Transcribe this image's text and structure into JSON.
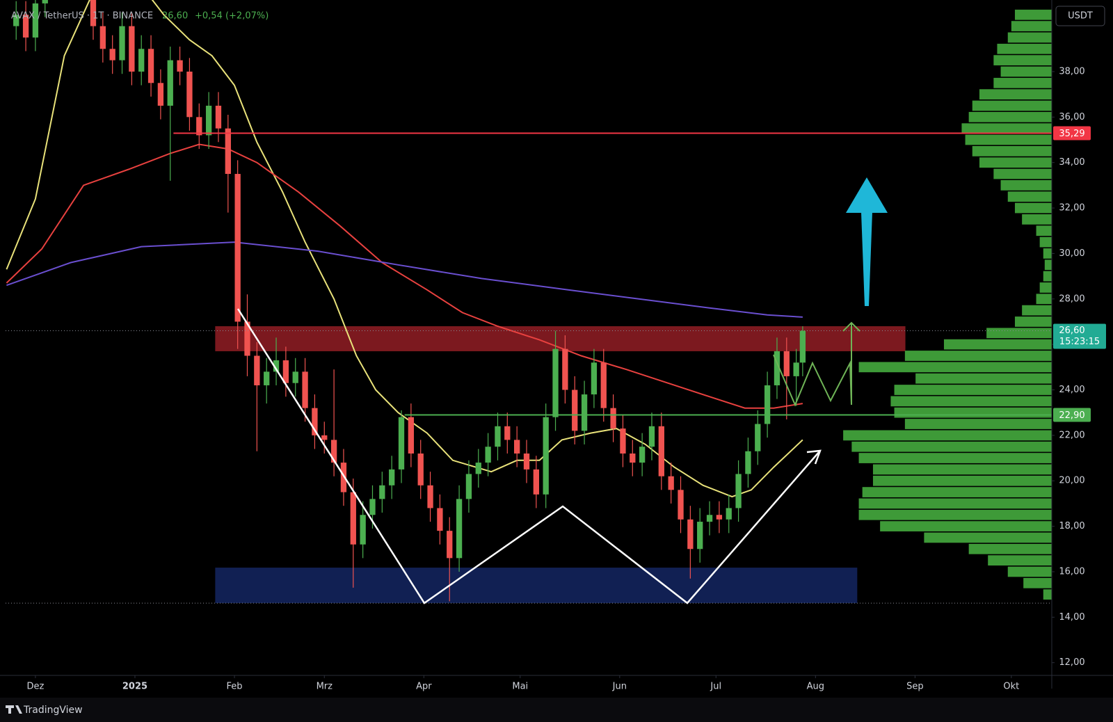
{
  "chart_data": {
    "type": "candlestick",
    "symbol": "AVAX / TetherUS · 1T · BINANCE",
    "change": "+0,54 (+2,07%)",
    "currency": "USDT",
    "brand": "TradingView",
    "up_color": "#4caf50",
    "down_color": "#f05350",
    "x": [
      -6,
      -3,
      0,
      3,
      6,
      9,
      12,
      15,
      18,
      21,
      24,
      27,
      30,
      33,
      36,
      39,
      42,
      45,
      48,
      51,
      54,
      57,
      60,
      63,
      66,
      69,
      72,
      75,
      78,
      81,
      84,
      87,
      90,
      93,
      96,
      99,
      102,
      105,
      108,
      111,
      114,
      117,
      120,
      123,
      126,
      129,
      132,
      135,
      138,
      141,
      144,
      147,
      150,
      153,
      156,
      159,
      162,
      165,
      168,
      171,
      174,
      177,
      180,
      183,
      186,
      189,
      192,
      195,
      198,
      201,
      204,
      207,
      210,
      213,
      216,
      219,
      222,
      225,
      228,
      231,
      234,
      237,
      239
    ],
    "open": [
      40,
      40.5,
      39.5,
      41,
      42,
      44,
      45,
      43,
      42,
      40,
      39,
      38.5,
      40,
      38,
      39,
      37.5,
      36.5,
      38.5,
      38,
      36,
      35.2,
      36.5,
      35.5,
      33.5,
      27,
      25.5,
      24.2,
      24.8,
      25.3,
      24.3,
      24.8,
      23.2,
      22,
      21.8,
      20.8,
      19.5,
      17.2,
      18.5,
      19.2,
      19.8,
      20.5,
      22.8,
      21.2,
      19.8,
      18.8,
      17.8,
      16.6,
      19.2,
      20.3,
      20.8,
      21.5,
      22.4,
      21.8,
      21.2,
      20.5,
      19.4,
      22.8,
      25.8,
      24,
      22.2,
      23.8,
      25.2,
      23.2,
      22.3,
      21.2,
      20.8,
      21.5,
      22.4,
      20.2,
      19.6,
      18.3,
      17,
      18.2,
      18.5,
      18.3,
      18.8,
      20.3,
      21.3,
      22.5,
      24.2,
      25.7,
      24.6,
      25.2
    ],
    "high": [
      41.1,
      41.1,
      41.6,
      42.6,
      44.6,
      45.6,
      45.6,
      43.6,
      42.6,
      40.6,
      39.6,
      40.6,
      40.6,
      39.6,
      39.6,
      38.1,
      39.1,
      39.1,
      38.6,
      36.6,
      37.1,
      37.1,
      36.1,
      34.1,
      28.2,
      26.1,
      25.4,
      26.3,
      25.9,
      25.4,
      25.4,
      23.8,
      22.6,
      24.9,
      21.4,
      20.1,
      19.1,
      19.8,
      20.4,
      21.1,
      23.1,
      23.4,
      21.8,
      20.4,
      19.4,
      18.4,
      19.8,
      20.9,
      21.4,
      22.1,
      23,
      23,
      22.4,
      21.8,
      21.1,
      23.4,
      26.6,
      26.4,
      24.6,
      24.4,
      25.8,
      25.8,
      23.8,
      22.9,
      21.8,
      22.1,
      23,
      23,
      20.8,
      20.2,
      18.9,
      18.8,
      19.1,
      19.1,
      19.4,
      20.9,
      21.9,
      23.1,
      24.8,
      26.3,
      26.3,
      25.8,
      26.8
    ],
    "low": [
      39.4,
      38.9,
      38.9,
      40.4,
      41.4,
      43.4,
      42.4,
      41.4,
      39.4,
      38.4,
      37.9,
      37.9,
      37.4,
      37.4,
      36.9,
      35.9,
      33.2,
      37.4,
      35.4,
      34.6,
      34.6,
      34.9,
      31.8,
      25.8,
      24.6,
      21.3,
      23.4,
      24.2,
      23.7,
      23.7,
      22.6,
      21.4,
      21.2,
      20.2,
      18.9,
      15.3,
      16.6,
      17.9,
      18.6,
      19.2,
      19.9,
      20.6,
      19.2,
      18.2,
      17.2,
      14.7,
      16,
      18.6,
      19.7,
      20.2,
      20.9,
      21.2,
      20.6,
      19.9,
      18.8,
      18.8,
      22.2,
      23.4,
      21.6,
      21.6,
      23.2,
      22.6,
      21.7,
      20.6,
      20.2,
      20.2,
      20.9,
      19.6,
      19,
      17.7,
      15.7,
      16.4,
      17.6,
      17.7,
      17.7,
      18.2,
      19.7,
      20.7,
      21.9,
      23.6,
      22.7,
      23.3,
      24.6
    ],
    "close": [
      40.5,
      39.5,
      41,
      42,
      44,
      45,
      43,
      42,
      40,
      39,
      38.5,
      40,
      38,
      39,
      37.5,
      36.5,
      38.5,
      38,
      36,
      35.2,
      36.5,
      35.5,
      33.5,
      27,
      25.5,
      24.2,
      24.8,
      25.3,
      24.3,
      24.8,
      23.2,
      22,
      21.8,
      20.8,
      19.5,
      17.2,
      18.5,
      19.2,
      19.8,
      20.5,
      22.8,
      21.2,
      19.8,
      18.8,
      17.8,
      16.6,
      19.2,
      20.3,
      20.8,
      21.5,
      22.4,
      21.8,
      21.2,
      20.5,
      19.4,
      22.8,
      25.8,
      24,
      22.2,
      23.8,
      25.2,
      23.2,
      22.3,
      21.2,
      20.8,
      21.5,
      22.4,
      20.2,
      19.6,
      18.3,
      17,
      18.2,
      18.5,
      18.3,
      18.8,
      20.3,
      21.3,
      22.5,
      24.2,
      25.7,
      24.6,
      25.2,
      26.6
    ],
    "series": [
      {
        "color": "#e9e27a",
        "x": [
          -9,
          0,
          9,
          18,
          29,
          40,
          48,
          55,
          62,
          69,
          77,
          84,
          93,
          100,
          106,
          113,
          122,
          130,
          142,
          150,
          157,
          164,
          173,
          181,
          190,
          199,
          208,
          217,
          223,
          230,
          239
        ],
        "values": [
          29.3,
          32.4,
          38.7,
          41.5,
          42.5,
          40.5,
          39.4,
          38.7,
          37.4,
          34.9,
          32.7,
          30.5,
          28,
          25.5,
          24,
          23,
          22.1,
          20.9,
          20.4,
          20.9,
          20.9,
          21.8,
          22.1,
          22.3,
          21.6,
          20.6,
          19.8,
          19.3,
          19.6,
          20.6,
          21.8
        ]
      },
      {
        "color": "#e8413f",
        "x": [
          -9,
          2,
          15,
          29,
          42,
          51,
          60,
          69,
          82,
          95,
          108,
          122,
          133,
          144,
          157,
          170,
          184,
          197,
          210,
          221,
          230,
          239
        ],
        "values": [
          28.7,
          30.2,
          33,
          33.7,
          34.4,
          34.8,
          34.6,
          34,
          32.7,
          31.2,
          29.6,
          28.4,
          27.4,
          26.8,
          26.2,
          25.5,
          24.9,
          24.3,
          23.7,
          23.2,
          23.2,
          23.4
        ]
      },
      {
        "color": "#6a4fd0",
        "x": [
          -9,
          11,
          33,
          62,
          88,
          113,
          139,
          166,
          188,
          210,
          228,
          239
        ],
        "values": [
          28.6,
          29.6,
          30.3,
          30.5,
          30.1,
          29.5,
          28.9,
          28.4,
          28,
          27.6,
          27.3,
          27.2
        ]
      }
    ],
    "zones": [
      {
        "low": 25.7,
        "high": 26.8,
        "x_from": 56,
        "x_to": 271,
        "color": "#8a1c22"
      },
      {
        "low": 14.62,
        "high": 16.18,
        "x_from": 56,
        "x_to": 256,
        "color": "#13235c"
      }
    ],
    "levels": [
      {
        "value": 35.29,
        "label": "35,29",
        "x_from": 43,
        "color": "#f23645"
      },
      {
        "value": 22.9,
        "label": "22,90",
        "x_from": 115,
        "color": "#4caf50"
      }
    ],
    "current": {
      "value": 26.6,
      "label": "26,60",
      "countdown": "15:23:15",
      "color": "#22ab94"
    },
    "volume_profile": {
      "color": "#3e9a38",
      "prices": [
        15,
        15.5,
        16,
        16.5,
        17,
        17.5,
        18,
        18.5,
        19,
        19.5,
        20,
        20.5,
        21,
        21.5,
        22,
        22.5,
        23,
        23.5,
        24,
        24.5,
        25,
        25.5,
        26,
        26.5,
        27,
        27.5,
        28,
        28.5,
        29,
        29.5,
        30,
        30.5,
        31,
        31.5,
        32,
        32.5,
        33,
        33.5,
        34,
        34.5,
        35,
        35.5,
        36,
        36.5,
        37,
        37.5,
        38,
        38.5,
        39,
        39.5,
        40,
        40.5
      ],
      "values": [
        12,
        40,
        62,
        90,
        117,
        180,
        242,
        272,
        272,
        267,
        252,
        252,
        272,
        282,
        294,
        207,
        222,
        227,
        222,
        192,
        272,
        207,
        152,
        92,
        52,
        42,
        22,
        17,
        12,
        10,
        12,
        17,
        22,
        42,
        52,
        62,
        72,
        82,
        102,
        112,
        122,
        127,
        117,
        112,
        102,
        82,
        72,
        82,
        77,
        62,
        57,
        52
      ]
    },
    "xlim": [
      -9.3,
      316.6
    ],
    "xticks": [
      {
        "value": 0,
        "label": "Dez"
      },
      {
        "value": 31,
        "label": "2025"
      },
      {
        "value": 62,
        "label": "Feb"
      },
      {
        "value": 90,
        "label": "Mrz"
      },
      {
        "value": 121,
        "label": "Apr"
      },
      {
        "value": 151,
        "label": "Mai"
      },
      {
        "value": 182,
        "label": "Jun"
      },
      {
        "value": 212,
        "label": "Jul"
      },
      {
        "value": 243,
        "label": "Aug"
      },
      {
        "value": 274,
        "label": "Sep"
      },
      {
        "value": 304,
        "label": "Okt"
      }
    ],
    "ylim": [
      11.44,
      41.15
    ],
    "yticks": [
      {
        "value": 12,
        "label": "12,00"
      },
      {
        "value": 14,
        "label": "14,00"
      },
      {
        "value": 16,
        "label": "16,00"
      },
      {
        "value": 18,
        "label": "18,00"
      },
      {
        "value": 20,
        "label": "20,00"
      },
      {
        "value": 22,
        "label": "22,00"
      },
      {
        "value": 24,
        "label": "24,00"
      },
      {
        "value": 26,
        "label": "26,00"
      },
      {
        "value": 28,
        "label": "28,00"
      },
      {
        "value": 30,
        "label": "30,00"
      },
      {
        "value": 32,
        "label": "32,00"
      },
      {
        "value": 34,
        "label": "34,00"
      },
      {
        "value": 36,
        "label": "36,00"
      },
      {
        "value": 38,
        "label": "38,00"
      }
    ],
    "grid": false
  }
}
